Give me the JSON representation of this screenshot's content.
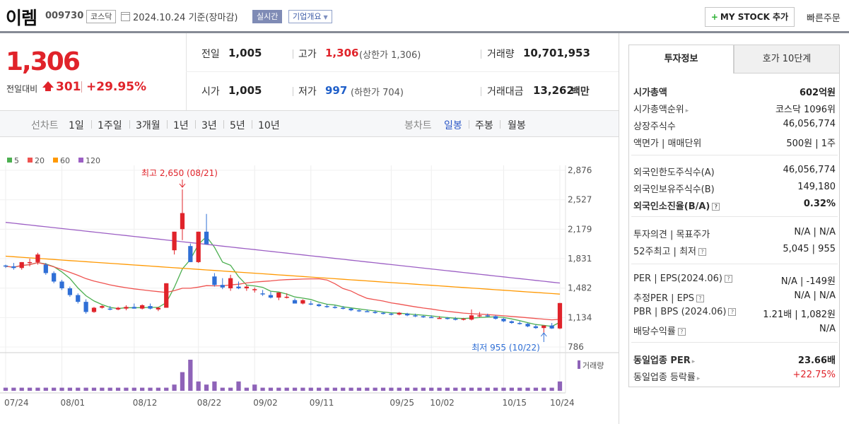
{
  "header": {
    "company_name": "이렘",
    "stock_code": "009730",
    "market": "코스닥",
    "base_date": "2024.10.24  기준(장마감)",
    "realtime_label": "실시간",
    "overview_label": "기업개요",
    "mystock_label": "MY STOCK 추가",
    "quick_order_label": "빠른주문"
  },
  "quote": {
    "price": "1,306",
    "change_label": "전일대비",
    "change_value": "301",
    "change_rate": "+29.95%",
    "prev_close_label": "전일",
    "prev_close": "1,005",
    "high_label": "고가",
    "high": "1,306",
    "high_sub": "(상한가 1,306)",
    "volume_label": "거래량",
    "volume": "10,701,953",
    "open_label": "시가",
    "open": "1,005",
    "low_label": "저가",
    "low": "997",
    "low_sub": "(하한가 704)",
    "amount_label": "거래대금",
    "amount": "13,262",
    "amount_unit": "백만"
  },
  "period_tabs": {
    "line_label": "선차트",
    "line_items": [
      "1일",
      "1주일",
      "3개월",
      "1년",
      "3년",
      "5년",
      "10년"
    ],
    "candle_label": "봉차트",
    "candle_items": [
      "일봉",
      "주봉",
      "월봉"
    ],
    "active": "일봉"
  },
  "chart_data": {
    "type": "candlestick",
    "ma_legend": [
      {
        "name": "5",
        "color": "#4caf50"
      },
      {
        "name": "20",
        "color": "#ef5350"
      },
      {
        "name": "60",
        "color": "#ff9800"
      },
      {
        "name": "120",
        "color": "#9c5fc4"
      }
    ],
    "y_ticks": [
      "2,876",
      "2,527",
      "2,179",
      "1,831",
      "1,482",
      "1,134",
      "786"
    ],
    "ylim": [
      786,
      2876
    ],
    "x_ticks": [
      "07/24",
      "08/01",
      "08/12",
      "08/22",
      "09/02",
      "09/11",
      "09/25",
      "10/02",
      "10/15",
      "10/24"
    ],
    "high_annotation": "최고 2,650 (08/21)",
    "low_annotation": "최저 955 (10/22)",
    "volume_label": "거래량",
    "candles": [
      [
        1750,
        1760,
        1720,
        1740
      ],
      [
        1740,
        1780,
        1700,
        1720
      ],
      [
        1720,
        1790,
        1700,
        1790
      ],
      [
        1790,
        1830,
        1740,
        1790
      ],
      [
        1790,
        1900,
        1760,
        1880
      ],
      [
        1760,
        1780,
        1640,
        1660
      ],
      [
        1660,
        1680,
        1540,
        1560
      ],
      [
        1560,
        1580,
        1460,
        1480
      ],
      [
        1480,
        1500,
        1380,
        1400
      ],
      [
        1400,
        1420,
        1300,
        1320
      ],
      [
        1320,
        1350,
        1180,
        1200
      ],
      [
        1200,
        1260,
        1190,
        1250
      ],
      [
        1250,
        1280,
        1240,
        1270
      ],
      [
        1240,
        1270,
        1220,
        1230
      ],
      [
        1230,
        1260,
        1220,
        1250
      ],
      [
        1240,
        1280,
        1220,
        1260
      ],
      [
        1260,
        1300,
        1240,
        1240
      ],
      [
        1240,
        1290,
        1230,
        1280
      ],
      [
        1270,
        1300,
        1230,
        1240
      ],
      [
        1230,
        1260,
        1210,
        1250
      ],
      [
        1250,
        1540,
        1250,
        1540
      ],
      [
        1930,
        2150,
        1880,
        2150
      ],
      [
        2180,
        2650,
        2050,
        2370
      ],
      [
        1980,
        2010,
        1790,
        1790
      ],
      [
        1790,
        2150,
        1780,
        2150
      ],
      [
        2150,
        2360,
        2020,
        2000
      ],
      [
        1620,
        1660,
        1500,
        1520
      ],
      [
        1520,
        1600,
        1470,
        1490
      ],
      [
        1480,
        1640,
        1450,
        1600
      ],
      [
        1500,
        1560,
        1470,
        1480
      ],
      [
        1480,
        1520,
        1450,
        1500
      ],
      [
        1460,
        1490,
        1430,
        1470
      ],
      [
        1420,
        1460,
        1390,
        1410
      ],
      [
        1400,
        1440,
        1360,
        1370
      ],
      [
        1370,
        1430,
        1340,
        1430
      ],
      [
        1380,
        1420,
        1360,
        1380
      ],
      [
        1340,
        1360,
        1300,
        1300
      ],
      [
        1300,
        1350,
        1290,
        1340
      ],
      [
        1300,
        1330,
        1280,
        1290
      ],
      [
        1290,
        1300,
        1260,
        1270
      ],
      [
        1270,
        1290,
        1250,
        1260
      ],
      [
        1260,
        1280,
        1240,
        1250
      ],
      [
        1250,
        1270,
        1230,
        1240
      ],
      [
        1240,
        1250,
        1210,
        1220
      ],
      [
        1220,
        1230,
        1200,
        1210
      ],
      [
        1210,
        1230,
        1200,
        1200
      ],
      [
        1200,
        1220,
        1180,
        1190
      ],
      [
        1190,
        1200,
        1170,
        1180
      ],
      [
        1180,
        1190,
        1160,
        1170
      ],
      [
        1170,
        1200,
        1160,
        1190
      ],
      [
        1180,
        1190,
        1150,
        1160
      ],
      [
        1160,
        1180,
        1140,
        1150
      ],
      [
        1150,
        1160,
        1130,
        1140
      ],
      [
        1140,
        1160,
        1130,
        1130
      ],
      [
        1130,
        1150,
        1120,
        1130
      ],
      [
        1130,
        1140,
        1110,
        1120
      ],
      [
        1120,
        1140,
        1100,
        1110
      ],
      [
        1110,
        1130,
        1100,
        1120
      ],
      [
        1110,
        1230,
        1100,
        1160
      ],
      [
        1150,
        1200,
        1140,
        1160
      ],
      [
        1160,
        1180,
        1140,
        1150
      ],
      [
        1150,
        1160,
        1110,
        1120
      ],
      [
        1120,
        1130,
        1080,
        1090
      ],
      [
        1090,
        1100,
        1060,
        1070
      ],
      [
        1070,
        1090,
        1050,
        1060
      ],
      [
        1060,
        1070,
        1020,
        1030
      ],
      [
        1030,
        1050,
        1000,
        1010
      ],
      [
        1010,
        1030,
        955,
        1040
      ],
      [
        1040,
        1070,
        1000,
        1005
      ],
      [
        1005,
        1306,
        997,
        1306
      ]
    ],
    "volumes": [
      1,
      1,
      1,
      1,
      1,
      1,
      1,
      1,
      1,
      1,
      1,
      1,
      1,
      1,
      1,
      1,
      1,
      1,
      1,
      1,
      1,
      2,
      6,
      10,
      3,
      2,
      3,
      1,
      1,
      3,
      1,
      2,
      1,
      1,
      1,
      1,
      1,
      1,
      1,
      1,
      1,
      1,
      1,
      1,
      1,
      1,
      1,
      1,
      1,
      1,
      1,
      1,
      1,
      1,
      1,
      1,
      1,
      1,
      1,
      1,
      1,
      1,
      1,
      1,
      1,
      1,
      1,
      1,
      1,
      3
    ]
  },
  "side_panel": {
    "tab_invest": "투자정보",
    "tab_hoga": "호가 10단계",
    "rows": [
      {
        "k": "시가총액",
        "v": "602억원",
        "bold": true
      },
      {
        "k": "시가총액순위",
        "v": "코스닥 1096위",
        "caret": true
      },
      {
        "k": "상장주식수",
        "v": "46,056,774"
      },
      {
        "k": "액면가 | 매매단위",
        "v": "500원 | 1주"
      },
      {
        "k": "외국인한도주식수(A)",
        "v": "46,056,774"
      },
      {
        "k": "외국인보유주식수(B)",
        "v": "149,180"
      },
      {
        "k": "외국인소진율(B/A)",
        "v": "0.32%",
        "bold": true,
        "q": true
      },
      {
        "k": "투자의견 | 목표주가",
        "v": "N/A | N/A"
      },
      {
        "k": "52주최고 | 최저",
        "v": "5,045 | 955",
        "q": true
      },
      {
        "k": "PER | EPS(2024.06)",
        "v": "N/A | -149원",
        "q": true
      },
      {
        "k": "추정PER | EPS",
        "v": "N/A | N/A",
        "q": true
      },
      {
        "k": "PBR | BPS (2024.06)",
        "v": "1.21배 | 1,082원",
        "q": true
      },
      {
        "k": "배당수익률",
        "v": "N/A",
        "q": true
      },
      {
        "k": "동일업종 PER",
        "v": "23.66배",
        "bold": true,
        "caret": true
      },
      {
        "k": "동일업종 등락률",
        "v": "+22.75%",
        "caret": true,
        "red": true
      }
    ]
  }
}
